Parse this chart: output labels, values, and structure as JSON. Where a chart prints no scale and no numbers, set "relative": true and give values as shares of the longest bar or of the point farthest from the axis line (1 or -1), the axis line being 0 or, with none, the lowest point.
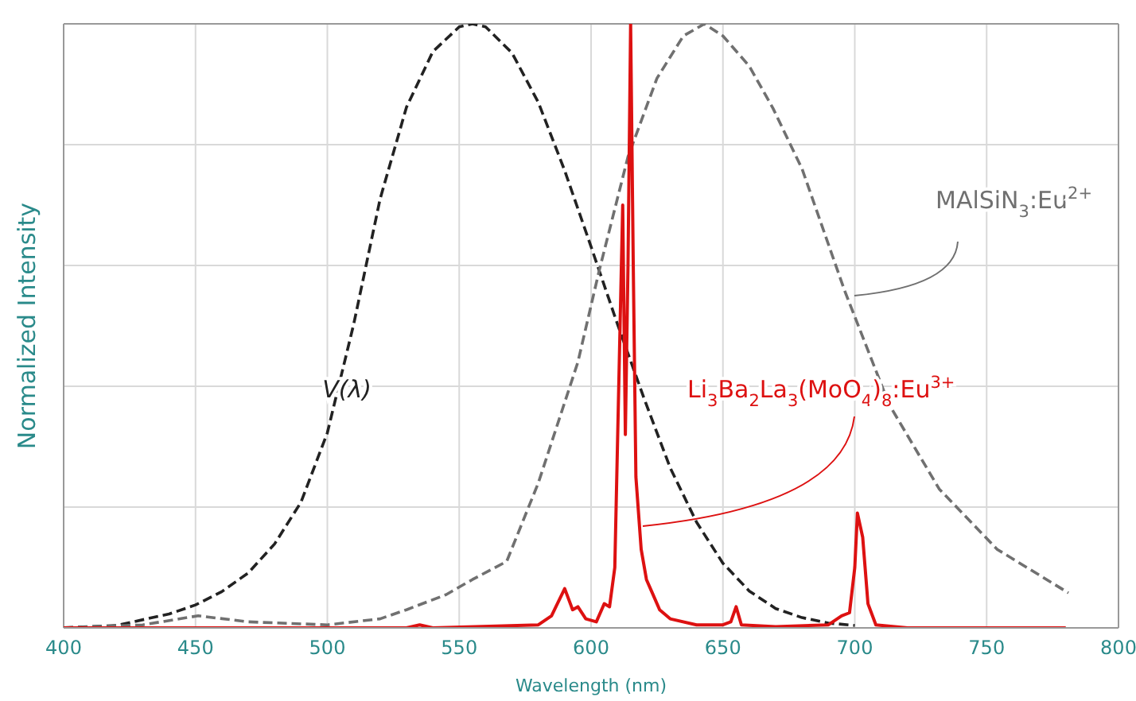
{
  "chart_data": {
    "type": "line",
    "relative": true,
    "xlabel": "Wavelength (nm)",
    "ylabel": "Normalized Intensity",
    "xlim": [
      400,
      800
    ],
    "xticks": [
      400,
      450,
      500,
      550,
      600,
      650,
      700,
      750,
      800
    ],
    "grid": true,
    "legend": false,
    "marker": "none",
    "series": [
      {
        "name": "V(λ)",
        "color": "#222222",
        "line_style": "dashed",
        "x": [
          400,
          420,
          440,
          450,
          460,
          470,
          480,
          490,
          500,
          510,
          520,
          530,
          540,
          550,
          555,
          560,
          570,
          580,
          590,
          600,
          610,
          620,
          630,
          640,
          650,
          660,
          670,
          680,
          690,
          700
        ],
        "values": [
          0.0004,
          0.004,
          0.023,
          0.038,
          0.06,
          0.091,
          0.139,
          0.208,
          0.323,
          0.503,
          0.71,
          0.862,
          0.954,
          0.995,
          1,
          0.995,
          0.952,
          0.87,
          0.757,
          0.631,
          0.503,
          0.381,
          0.265,
          0.175,
          0.107,
          0.061,
          0.032,
          0.017,
          0.008,
          0.004
        ]
      },
      {
        "name": "MAlSiN$_{3}$:Eu$^{2+}$",
        "color": "#707070",
        "line_style": "dashed",
        "x": [
          400,
          430,
          451,
          470,
          500,
          520,
          530,
          545,
          555,
          568,
          580,
          595,
          603,
          614,
          625,
          635,
          643,
          650,
          660,
          669,
          680,
          696,
          713,
          732,
          754,
          781
        ],
        "values": [
          0,
          0.005,
          0.02,
          0.01,
          0.005,
          0.015,
          0.03,
          0.055,
          0.08,
          0.11,
          0.24,
          0.44,
          0.59,
          0.78,
          0.91,
          0.98,
          1,
          0.98,
          0.93,
          0.86,
          0.76,
          0.56,
          0.37,
          0.23,
          0.13,
          0.058
        ]
      },
      {
        "name": "Li$_{3}$Ba$_{2}$La$_{3}$(MoO$_{4}$)$_{8}$:Eu$^{3+}$",
        "color": "#dd1111",
        "line_style": "solid",
        "x": [
          400,
          530,
          535,
          540,
          580,
          585,
          590,
          593,
          595,
          598,
          602,
          605,
          607,
          609,
          611,
          612,
          613,
          614,
          615,
          616,
          617,
          619,
          621,
          623,
          626,
          630,
          640,
          650,
          653,
          655,
          657,
          670,
          690,
          695,
          698,
          700,
          701,
          703,
          705,
          708,
          720,
          780
        ],
        "values": [
          0,
          0,
          0.005,
          0,
          0.005,
          0.02,
          0.065,
          0.03,
          0.035,
          0.015,
          0.01,
          0.04,
          0.035,
          0.1,
          0.5,
          0.7,
          0.32,
          0.6,
          1,
          0.6,
          0.25,
          0.13,
          0.08,
          0.06,
          0.03,
          0.015,
          0.005,
          0.005,
          0.01,
          0.035,
          0.005,
          0.002,
          0.005,
          0.02,
          0.025,
          0.1,
          0.19,
          0.15,
          0.04,
          0.005,
          0,
          0
        ]
      }
    ]
  }
}
